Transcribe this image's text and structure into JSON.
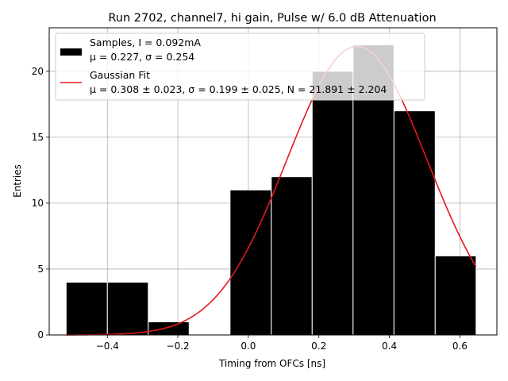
{
  "chart_data": {
    "type": "bar",
    "title": "Run 2702, channel7, hi gain, Pulse w/ 6.0 dB Attenuation",
    "xlabel": "Timing from OFCs [ns]",
    "ylabel": "Entries",
    "xlim": [
      -0.565,
      0.705
    ],
    "ylim": [
      0,
      23.3
    ],
    "grid": true,
    "x_ticks": [
      -0.4,
      -0.2,
      0.0,
      0.2,
      0.4,
      0.6
    ],
    "x_tick_labels": [
      "−0.4",
      "−0.2",
      "0.0",
      "0.2",
      "0.4",
      "0.6"
    ],
    "y_ticks": [
      0,
      5,
      10,
      15,
      20
    ],
    "y_tick_labels": [
      "0",
      "5",
      "10",
      "15",
      "20"
    ],
    "histogram": {
      "name": "Samples, I = 0.092mA",
      "stats": "μ = 0.227, σ = 0.254",
      "color": "#000000",
      "edge_color": "#ffffff",
      "bins": [
        {
          "x0": -0.517,
          "x1": -0.4,
          "value": 4
        },
        {
          "x0": -0.4,
          "x1": -0.284,
          "value": 4
        },
        {
          "x0": -0.284,
          "x1": -0.168,
          "value": 1
        },
        {
          "x0": -0.168,
          "x1": -0.052,
          "value": 0
        },
        {
          "x0": -0.052,
          "x1": 0.065,
          "value": 11
        },
        {
          "x0": 0.065,
          "x1": 0.181,
          "value": 12
        },
        {
          "x0": 0.181,
          "x1": 0.297,
          "value": 20
        },
        {
          "x0": 0.297,
          "x1": 0.413,
          "value": 22
        },
        {
          "x0": 0.413,
          "x1": 0.53,
          "value": 17
        },
        {
          "x0": 0.53,
          "x1": 0.646,
          "value": 6
        }
      ]
    },
    "fit": {
      "type": "line",
      "name": "Gaussian Fit",
      "params_text": "μ = 0.308 ± 0.023, σ = 0.199 ± 0.025, N = 21.891 ± 2.204",
      "color": "#e41a1c",
      "mu": 0.308,
      "sigma": 0.199,
      "N": 21.891,
      "x_range": [
        -0.517,
        0.646
      ]
    },
    "legend_placement": "top-left"
  }
}
